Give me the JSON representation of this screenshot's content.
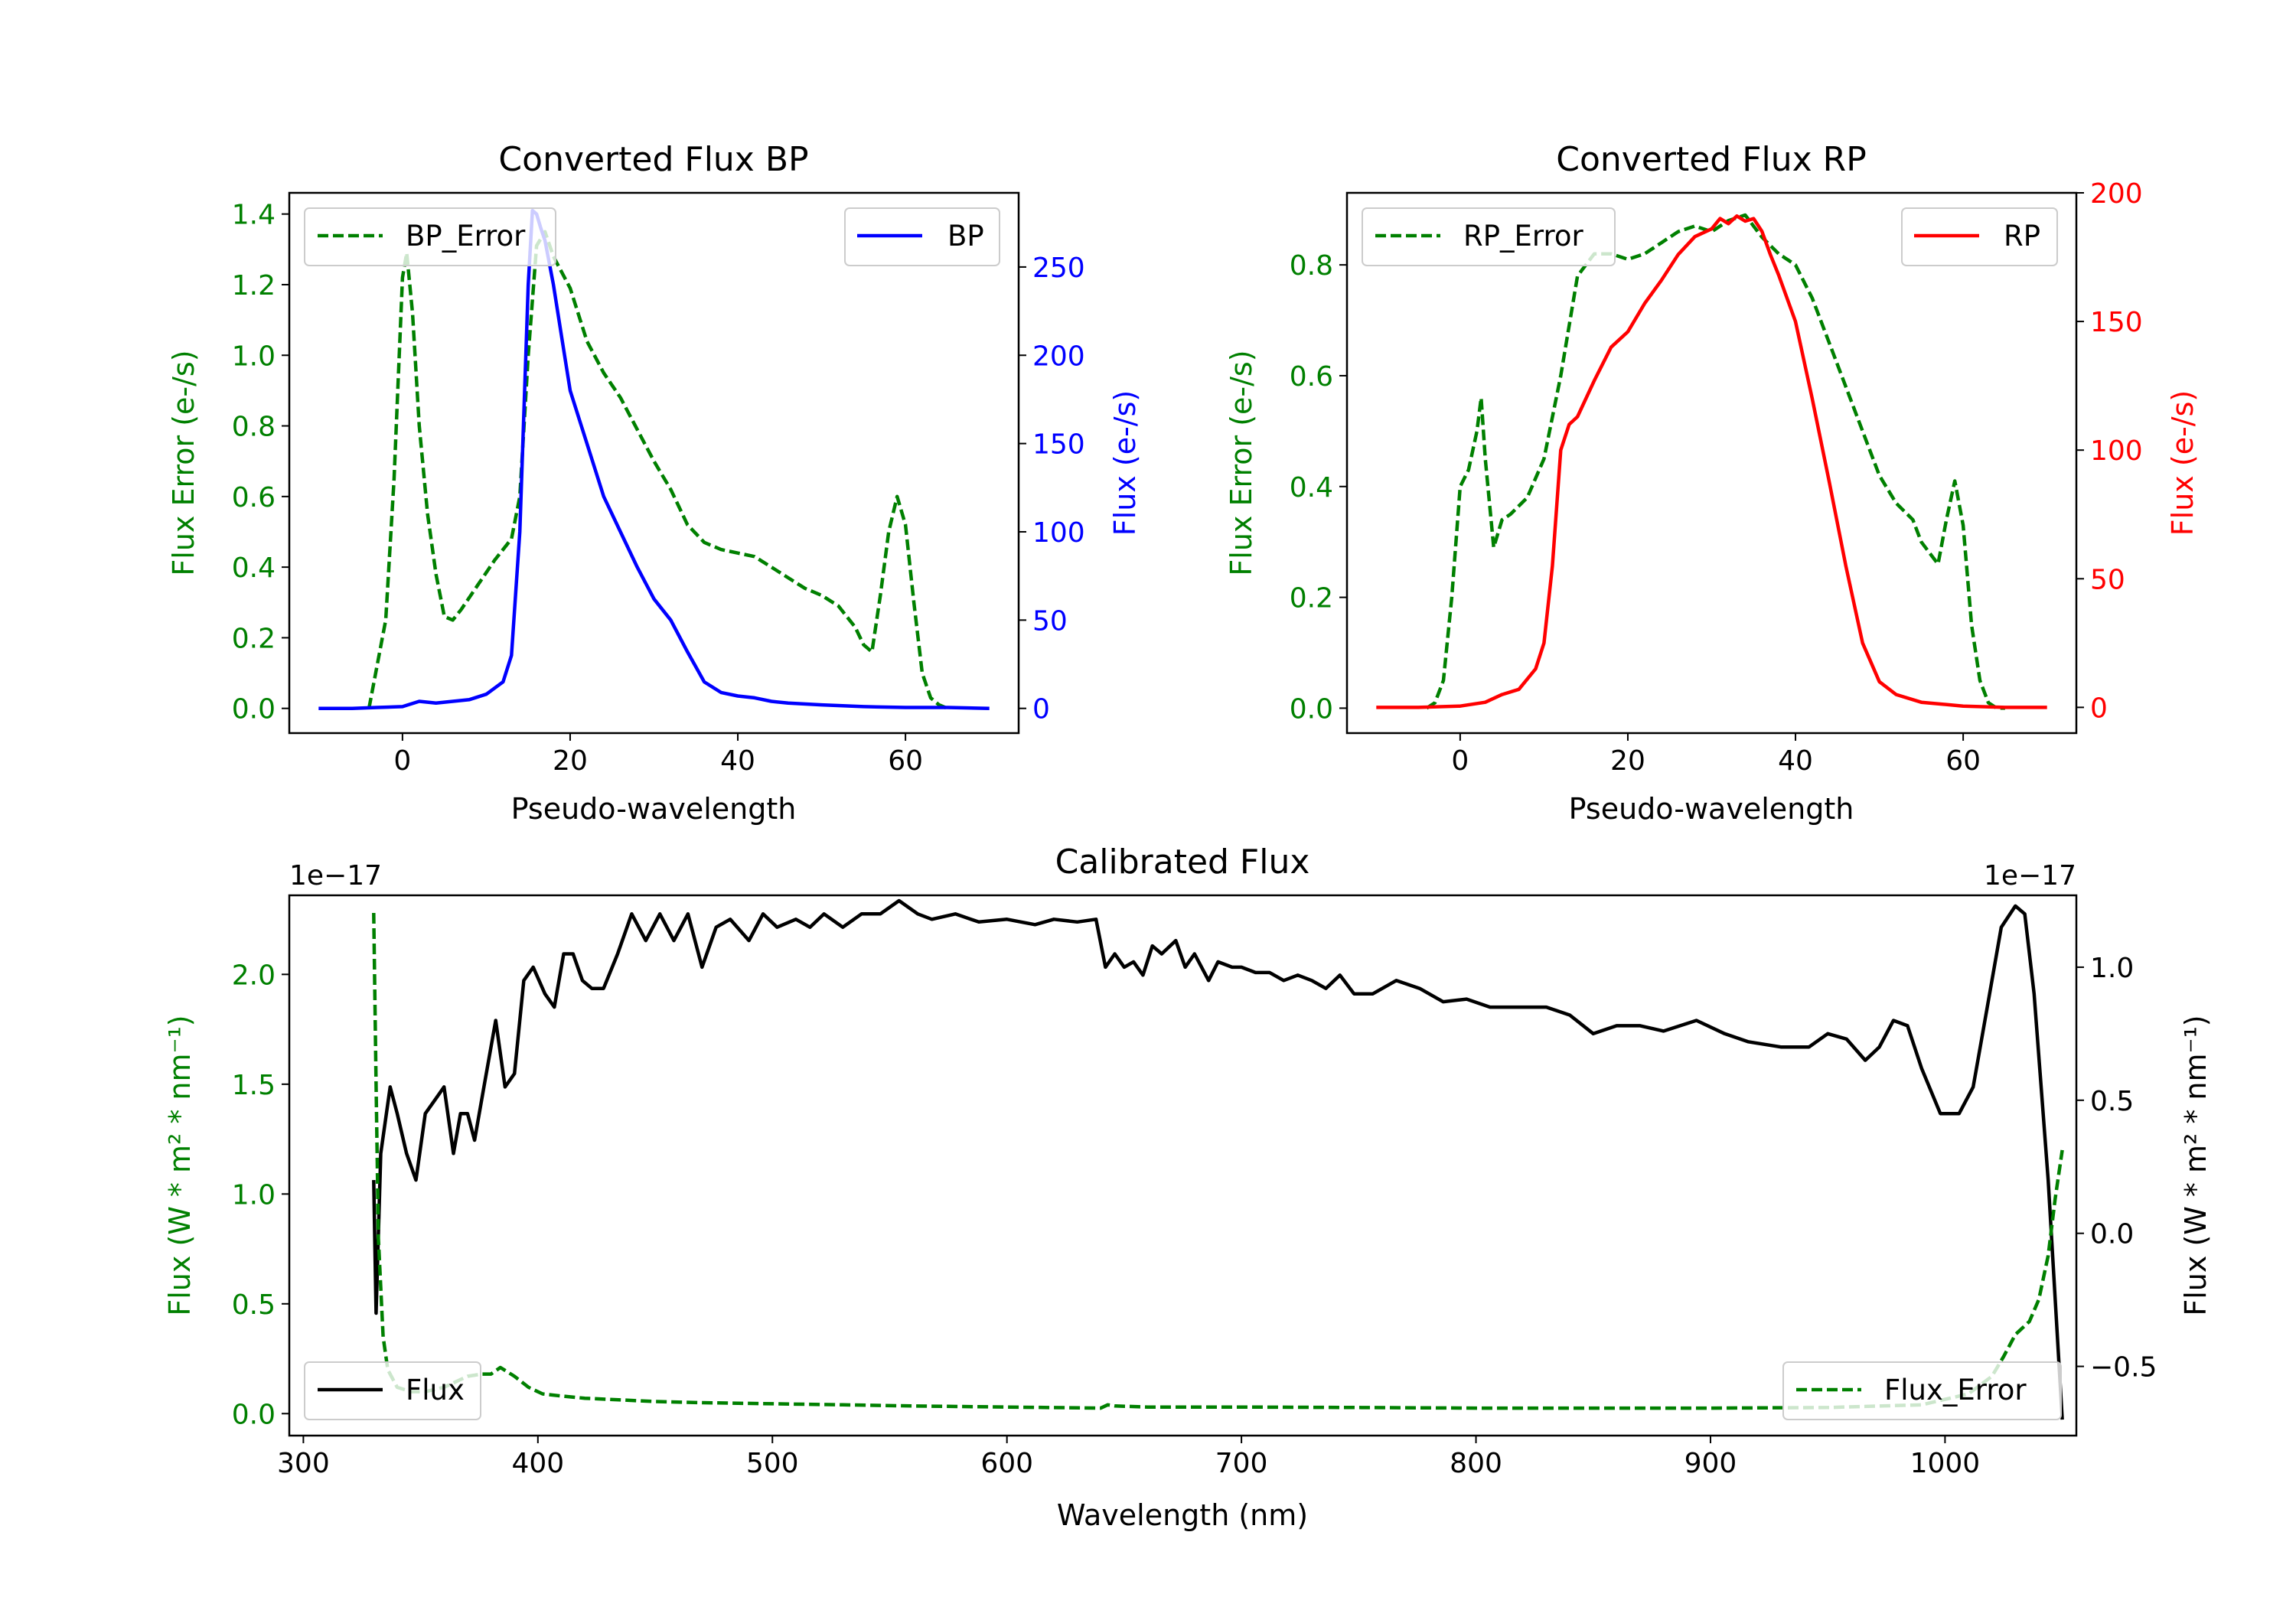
{
  "chart_data": [
    {
      "id": "bp",
      "type": "line",
      "title": "Converted Flux BP",
      "xlabel": "Pseudo-wavelength",
      "ylabel_left": "Flux Error (e-/s)",
      "ylabel_right": "Flux (e-/s)",
      "xlim": [
        -13.5,
        73.5
      ],
      "ylim_left": [
        -0.07,
        1.46
      ],
      "ylim_right": [
        -14,
        292
      ],
      "xticks": [
        "0",
        "20",
        "40",
        "60"
      ],
      "yticks_left": [
        "0.0",
        "0.2",
        "0.4",
        "0.6",
        "0.8",
        "1.0",
        "1.2",
        "1.4"
      ],
      "yticks_right": [
        "0",
        "50",
        "100",
        "150",
        "200",
        "250"
      ],
      "legend_left": "BP_Error",
      "legend_right": "BP",
      "colors": {
        "left": "#008000",
        "right": "#0000ff"
      },
      "series": [
        {
          "name": "BP_Error",
          "axis": "left",
          "style": "dashed",
          "x": [
            -4,
            -2,
            -1,
            0,
            0.5,
            1.2,
            2,
            3,
            4,
            5,
            6,
            7,
            9,
            11,
            13,
            14,
            15,
            16,
            17,
            18,
            20,
            22,
            24,
            26,
            28,
            30,
            32,
            34,
            36,
            38,
            40,
            42,
            44,
            46,
            48,
            50,
            52,
            54,
            55,
            56,
            57,
            58,
            59,
            60,
            61,
            62,
            63,
            64,
            65
          ],
          "y": [
            0.0,
            0.25,
            0.65,
            1.22,
            1.29,
            1.12,
            0.8,
            0.55,
            0.38,
            0.26,
            0.25,
            0.28,
            0.35,
            0.42,
            0.48,
            0.6,
            1.0,
            1.31,
            1.35,
            1.28,
            1.19,
            1.04,
            0.95,
            0.88,
            0.79,
            0.7,
            0.62,
            0.52,
            0.47,
            0.45,
            0.44,
            0.43,
            0.4,
            0.37,
            0.34,
            0.32,
            0.29,
            0.23,
            0.18,
            0.16,
            0.32,
            0.5,
            0.6,
            0.52,
            0.3,
            0.1,
            0.03,
            0.01,
            0.0
          ]
        },
        {
          "name": "BP",
          "axis": "right",
          "style": "solid",
          "x": [
            -10,
            -6,
            -3,
            0,
            2,
            4,
            6,
            8,
            10,
            12,
            13,
            14,
            15,
            15.5,
            16,
            16.5,
            17,
            18,
            19,
            20,
            22,
            24,
            26,
            28,
            30,
            32,
            34,
            36,
            38,
            40,
            42,
            44,
            46,
            50,
            55,
            60,
            65,
            70
          ],
          "y": [
            0,
            0,
            0.5,
            1,
            4,
            3,
            4,
            5,
            8,
            15,
            30,
            100,
            240,
            282,
            280,
            272,
            265,
            240,
            210,
            180,
            150,
            120,
            100,
            80,
            62,
            50,
            32,
            15,
            9,
            7,
            6,
            4,
            3,
            2,
            1,
            0.5,
            0.5,
            0
          ]
        }
      ]
    },
    {
      "id": "rp",
      "type": "line",
      "title": "Converted Flux RP",
      "xlabel": "Pseudo-wavelength",
      "ylabel_left": "Flux Error (e-/s)",
      "ylabel_right": "Flux (e-/s)",
      "xlim": [
        -13.5,
        73.5
      ],
      "ylim_left": [
        -0.045,
        0.93
      ],
      "ylim_right": [
        -10,
        200
      ],
      "xticks": [
        "0",
        "20",
        "40",
        "60"
      ],
      "yticks_left": [
        "0.0",
        "0.2",
        "0.4",
        "0.6",
        "0.8"
      ],
      "yticks_right": [
        "0",
        "50",
        "100",
        "150",
        "200"
      ],
      "legend_left": "RP_Error",
      "legend_right": "RP",
      "colors": {
        "left": "#008000",
        "right": "#ff0000"
      },
      "series": [
        {
          "name": "RP_Error",
          "axis": "left",
          "style": "dashed",
          "x": [
            -4,
            -3,
            -2,
            -1,
            0,
            1,
            2,
            2.5,
            3,
            4,
            5,
            6,
            8,
            10,
            12,
            14,
            16,
            18,
            20,
            22,
            24,
            26,
            28,
            30,
            32,
            34,
            36,
            38,
            40,
            42,
            44,
            46,
            48,
            50,
            52,
            54,
            55,
            56,
            57,
            58,
            59,
            60,
            61,
            62,
            63,
            64,
            65
          ],
          "y": [
            0.0,
            0.01,
            0.05,
            0.2,
            0.4,
            0.43,
            0.5,
            0.56,
            0.45,
            0.29,
            0.34,
            0.35,
            0.38,
            0.45,
            0.6,
            0.78,
            0.82,
            0.82,
            0.81,
            0.82,
            0.84,
            0.86,
            0.87,
            0.86,
            0.88,
            0.89,
            0.85,
            0.82,
            0.8,
            0.74,
            0.66,
            0.58,
            0.5,
            0.42,
            0.37,
            0.34,
            0.3,
            0.28,
            0.26,
            0.34,
            0.41,
            0.33,
            0.15,
            0.05,
            0.01,
            0.0,
            0.0
          ]
        },
        {
          "name": "RP",
          "axis": "right",
          "style": "solid",
          "x": [
            -10,
            -5,
            0,
            3,
            5,
            7,
            9,
            10,
            11,
            12,
            13,
            14,
            16,
            18,
            20,
            22,
            24,
            26,
            28,
            30,
            31,
            32,
            33,
            34,
            35,
            36,
            37,
            38,
            40,
            42,
            44,
            46,
            48,
            50,
            52,
            55,
            60,
            65,
            70
          ],
          "y": [
            0,
            0,
            0.5,
            2,
            5,
            7,
            15,
            25,
            55,
            100,
            110,
            113,
            127,
            140,
            146,
            157,
            166,
            176,
            183,
            186,
            190,
            188,
            191,
            189,
            190,
            185,
            176,
            168,
            150,
            120,
            88,
            55,
            25,
            10,
            5,
            2,
            0.5,
            0,
            0
          ]
        }
      ]
    },
    {
      "id": "cal",
      "type": "line",
      "title": "Calibrated Flux",
      "xlabel": "Wavelength (nm)",
      "ylabel_left": "Flux (W * m² * nm⁻¹)",
      "ylabel_right": "Flux (W * m² * nm⁻¹)",
      "offset_left": "1e−17",
      "offset_right": "1e−17",
      "xlim": [
        294,
        1056
      ],
      "ylim_left": [
        -0.1,
        2.36
      ],
      "ylim_right": [
        -0.76,
        1.27
      ],
      "xticks": [
        "300",
        "400",
        "500",
        "600",
        "700",
        "800",
        "900",
        "1000"
      ],
      "yticks_left": [
        "0.0",
        "0.5",
        "1.0",
        "1.5",
        "2.0"
      ],
      "yticks_right": [
        "−0.5",
        "0.0",
        "0.5",
        "1.0"
      ],
      "legend_left": "Flux",
      "legend_right": "Flux_Error",
      "colors": {
        "left": "#008000",
        "right": "#000000"
      },
      "series": [
        {
          "name": "Flux",
          "axis": "right",
          "style": "solid",
          "x": [
            330,
            331,
            333,
            337,
            340,
            344,
            348,
            352,
            356,
            360,
            364,
            367,
            370,
            373,
            377,
            382,
            386,
            390,
            394,
            398,
            403,
            407,
            411,
            415,
            419,
            423,
            428,
            434,
            440,
            446,
            452,
            458,
            464,
            470,
            476,
            482,
            490,
            496,
            502,
            510,
            516,
            522,
            530,
            538,
            546,
            554,
            562,
            568,
            578,
            588,
            600,
            612,
            620,
            630,
            638,
            642,
            646,
            650,
            654,
            658,
            662,
            666,
            672,
            676,
            680,
            686,
            690,
            696,
            700,
            706,
            712,
            718,
            724,
            730,
            736,
            742,
            748,
            756,
            766,
            776,
            786,
            796,
            806,
            816,
            830,
            840,
            850,
            860,
            870,
            880,
            894,
            906,
            916,
            930,
            942,
            950,
            958,
            966,
            972,
            978,
            984,
            990,
            998,
            1006,
            1012,
            1018,
            1024,
            1030,
            1034,
            1038,
            1044,
            1050
          ],
          "y": [
            0.2,
            -0.3,
            0.3,
            0.55,
            0.45,
            0.3,
            0.2,
            0.45,
            0.5,
            0.55,
            0.3,
            0.45,
            0.45,
            0.35,
            0.55,
            0.8,
            0.55,
            0.6,
            0.95,
            1.0,
            0.9,
            0.85,
            1.05,
            1.05,
            0.95,
            0.92,
            0.92,
            1.05,
            1.2,
            1.1,
            1.2,
            1.1,
            1.2,
            1.0,
            1.15,
            1.18,
            1.1,
            1.2,
            1.15,
            1.18,
            1.15,
            1.2,
            1.15,
            1.2,
            1.2,
            1.25,
            1.2,
            1.18,
            1.2,
            1.17,
            1.18,
            1.16,
            1.18,
            1.17,
            1.18,
            1.0,
            1.05,
            1.0,
            1.02,
            0.97,
            1.08,
            1.05,
            1.1,
            1.0,
            1.05,
            0.95,
            1.02,
            1.0,
            1.0,
            0.98,
            0.98,
            0.95,
            0.97,
            0.95,
            0.92,
            0.97,
            0.9,
            0.9,
            0.95,
            0.92,
            0.87,
            0.88,
            0.85,
            0.85,
            0.85,
            0.82,
            0.75,
            0.78,
            0.78,
            0.76,
            0.8,
            0.75,
            0.72,
            0.7,
            0.7,
            0.75,
            0.73,
            0.65,
            0.7,
            0.8,
            0.78,
            0.62,
            0.45,
            0.45,
            0.55,
            0.85,
            1.15,
            1.23,
            1.2,
            0.9,
            0.2,
            -0.7
          ]
        },
        {
          "name": "Flux_Error",
          "axis": "left",
          "style": "dashed",
          "x": [
            330,
            331,
            332,
            334,
            336,
            340,
            346,
            352,
            360,
            370,
            376,
            380,
            384,
            390,
            396,
            402,
            410,
            420,
            430,
            450,
            470,
            500,
            530,
            560,
            600,
            640,
            643,
            646,
            660,
            700,
            750,
            800,
            850,
            900,
            950,
            990,
            1010,
            1020,
            1025,
            1030,
            1036,
            1040,
            1044,
            1047,
            1050
          ],
          "y": [
            2.28,
            1.5,
            0.8,
            0.35,
            0.2,
            0.12,
            0.1,
            0.1,
            0.12,
            0.17,
            0.18,
            0.18,
            0.21,
            0.17,
            0.12,
            0.09,
            0.08,
            0.07,
            0.065,
            0.055,
            0.05,
            0.045,
            0.04,
            0.035,
            0.03,
            0.025,
            0.04,
            0.035,
            0.03,
            0.03,
            0.028,
            0.025,
            0.025,
            0.025,
            0.028,
            0.04,
            0.09,
            0.17,
            0.26,
            0.36,
            0.42,
            0.52,
            0.72,
            0.98,
            1.2
          ]
        }
      ]
    }
  ]
}
